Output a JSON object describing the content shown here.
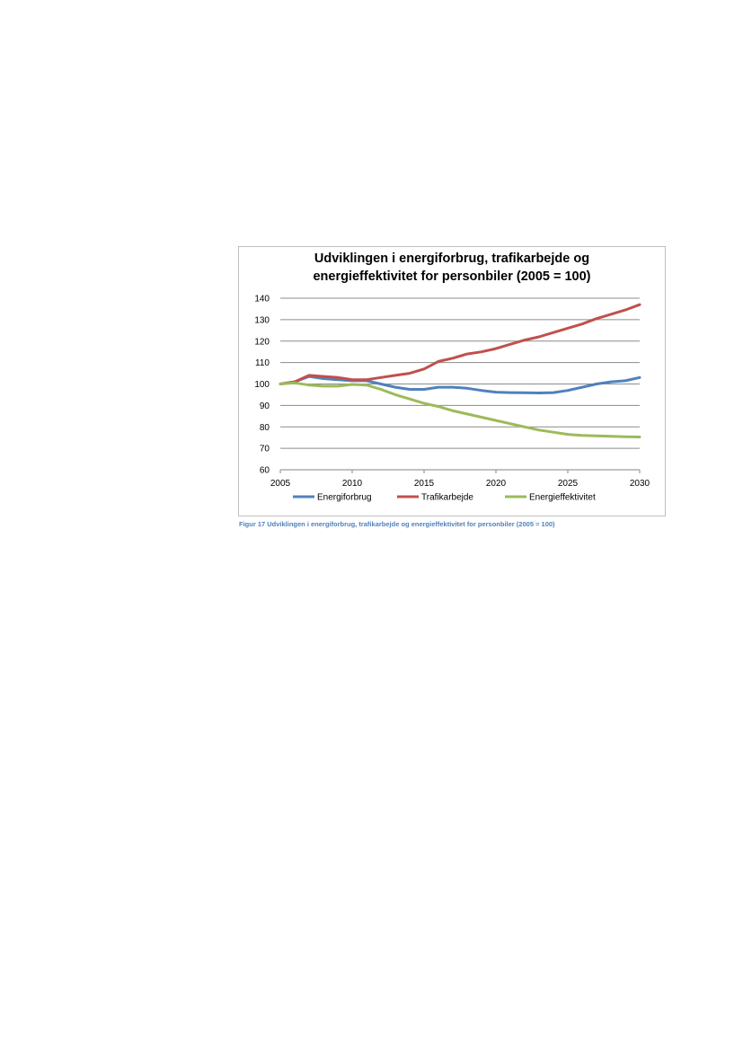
{
  "chart_data": {
    "type": "line",
    "title_line1": "Udviklingen i energiforbrug, trafikarbejde og",
    "title_line2": "energieffektivitet for personbiler (2005 = 100)",
    "xlim": [
      2005,
      2030
    ],
    "ylim": [
      60,
      140
    ],
    "xticks": [
      2005,
      2010,
      2015,
      2020,
      2025,
      2030
    ],
    "yticks": [
      60,
      70,
      80,
      90,
      100,
      110,
      120,
      130,
      140
    ],
    "grid": true,
    "legend_position": "bottom",
    "series": [
      {
        "name": "Energiforbrug",
        "color": "#4f81bd",
        "x": [
          2005,
          2006,
          2007,
          2008,
          2009,
          2010,
          2011,
          2012,
          2013,
          2014,
          2015,
          2016,
          2017,
          2018,
          2019,
          2020,
          2021,
          2022,
          2023,
          2024,
          2025,
          2026,
          2027,
          2028,
          2029,
          2030
        ],
        "y": [
          100,
          101,
          103.5,
          102.5,
          102,
          101.5,
          101.5,
          100,
          98.5,
          97.5,
          97.5,
          98.5,
          98.5,
          98,
          97,
          96.2,
          96,
          95.9,
          95.8,
          96,
          97,
          98.5,
          100,
          101,
          101.5,
          103
        ]
      },
      {
        "name": "Trafikarbejde",
        "color": "#c0504d",
        "x": [
          2005,
          2006,
          2007,
          2008,
          2009,
          2010,
          2011,
          2012,
          2013,
          2014,
          2015,
          2016,
          2017,
          2018,
          2019,
          2020,
          2021,
          2022,
          2023,
          2024,
          2025,
          2026,
          2027,
          2028,
          2029,
          2030
        ],
        "y": [
          100,
          101,
          104,
          103.5,
          103,
          102,
          102,
          103,
          104,
          105,
          107,
          110.5,
          112,
          114,
          115,
          116.5,
          118.5,
          120.5,
          122,
          124,
          126,
          128,
          130.5,
          132.5,
          134.5,
          137
        ]
      },
      {
        "name": "Energieffektivitet",
        "color": "#9bbb59",
        "x": [
          2005,
          2006,
          2007,
          2008,
          2009,
          2010,
          2011,
          2012,
          2013,
          2014,
          2015,
          2016,
          2017,
          2018,
          2019,
          2020,
          2021,
          2022,
          2023,
          2024,
          2025,
          2026,
          2027,
          2028,
          2029,
          2030
        ],
        "y": [
          100,
          100.5,
          99.5,
          99,
          99,
          99.8,
          99.5,
          97.5,
          95,
          93,
          91,
          89.5,
          87.5,
          86,
          84.5,
          83,
          81.5,
          80,
          78.5,
          77.5,
          76.5,
          76,
          75.8,
          75.6,
          75.4,
          75.3
        ]
      }
    ]
  },
  "caption": "Figur 17 Udviklingen i energiforbrug, trafikarbejde og energieffektivitet for personbiler (2005 = 100)"
}
